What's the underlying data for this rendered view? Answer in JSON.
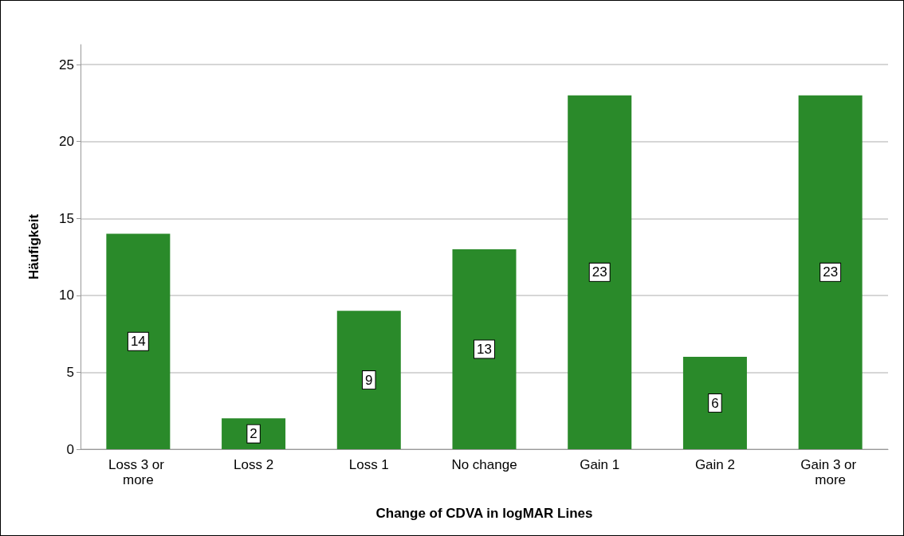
{
  "chart_data": {
    "type": "bar",
    "xlabel": "Change of CDVA in logMAR Lines",
    "ylabel": "Häufigkeit",
    "categories": [
      "Loss 3 or more",
      "Loss 2",
      "Loss 1",
      "No change",
      "Gain 1",
      "Gain 2",
      "Gain 3 or more"
    ],
    "values": [
      14,
      2,
      9,
      13,
      23,
      6,
      23
    ],
    "color": "#2a8a2a",
    "ylim": [
      0,
      26.3
    ],
    "yticks": [
      0,
      5,
      10,
      15,
      20,
      25
    ],
    "grid": "y",
    "data_labels": true
  }
}
